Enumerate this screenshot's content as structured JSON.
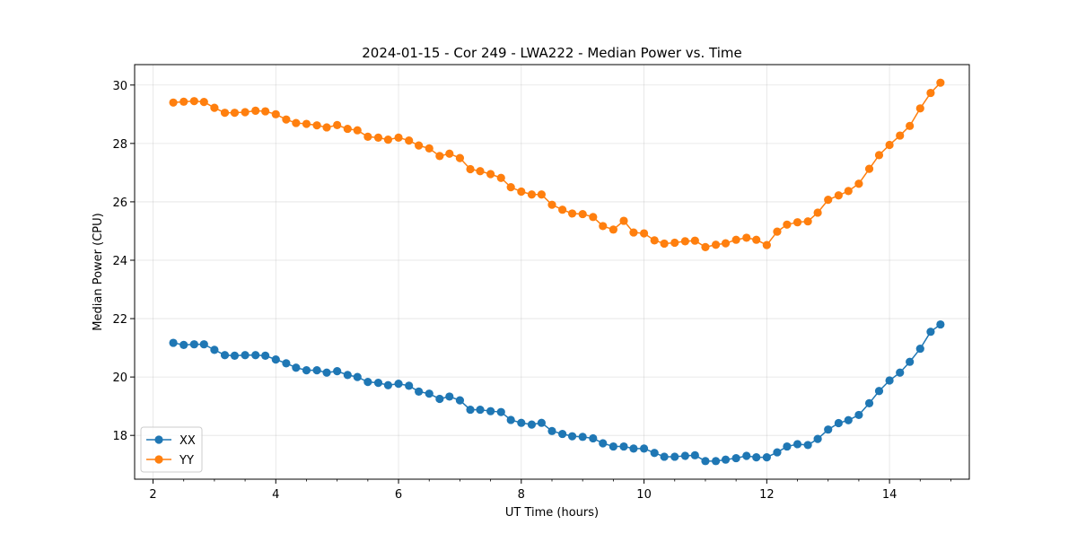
{
  "chart_data": {
    "type": "line",
    "title": "2024-01-15 - Cor 249 - LWA222 - Median Power vs. Time",
    "xlabel": "UT Time (hours)",
    "ylabel": "Median Power (CPU)",
    "xlim": [
      1.7,
      15.3
    ],
    "ylim": [
      16.5,
      30.7
    ],
    "xticks": [
      2,
      4,
      6,
      8,
      10,
      12,
      14
    ],
    "xtick_labels": [
      "2",
      "4",
      "6",
      "8",
      "10",
      "12",
      "14"
    ],
    "yticks": [
      18,
      20,
      22,
      24,
      26,
      28,
      30
    ],
    "ytick_labels": [
      "18",
      "20",
      "22",
      "24",
      "26",
      "28",
      "30"
    ],
    "grid": true,
    "legend_position": "lower-left",
    "x": [
      2.33,
      2.5,
      2.67,
      2.83,
      3.0,
      3.17,
      3.33,
      3.5,
      3.67,
      3.83,
      4.0,
      4.17,
      4.33,
      4.5,
      4.67,
      4.83,
      5.0,
      5.17,
      5.33,
      5.5,
      5.67,
      5.83,
      6.0,
      6.17,
      6.33,
      6.5,
      6.67,
      6.83,
      7.0,
      7.17,
      7.33,
      7.5,
      7.67,
      7.83,
      8.0,
      8.17,
      8.33,
      8.5,
      8.67,
      8.83,
      9.0,
      9.17,
      9.33,
      9.5,
      9.67,
      9.83,
      10.0,
      10.17,
      10.33,
      10.5,
      10.67,
      10.83,
      11.0,
      11.17,
      11.33,
      11.5,
      11.67,
      11.83,
      12.0,
      12.17,
      12.33,
      12.5,
      12.67,
      12.83,
      13.0,
      13.17,
      13.33,
      13.5,
      13.67,
      13.83,
      14.0,
      14.17,
      14.33,
      14.5,
      14.67,
      14.83
    ],
    "series": [
      {
        "name": "XX",
        "color": "#1f77b4",
        "values": [
          21.17,
          21.1,
          21.12,
          21.12,
          20.93,
          20.75,
          20.73,
          20.75,
          20.75,
          20.73,
          20.6,
          20.47,
          20.32,
          20.23,
          20.23,
          20.15,
          20.2,
          20.07,
          20.0,
          19.83,
          19.8,
          19.72,
          19.77,
          19.7,
          19.5,
          19.43,
          19.25,
          19.33,
          19.2,
          18.88,
          18.88,
          18.83,
          18.8,
          18.53,
          18.43,
          18.37,
          18.43,
          18.15,
          18.05,
          17.97,
          17.95,
          17.9,
          17.73,
          17.62,
          17.62,
          17.55,
          17.55,
          17.4,
          17.27,
          17.27,
          17.3,
          17.32,
          17.12,
          17.12,
          17.17,
          17.22,
          17.3,
          17.25,
          17.25,
          17.42,
          17.62,
          17.7,
          17.67,
          17.88,
          18.2,
          18.42,
          18.52,
          18.7,
          19.1,
          19.52,
          19.88,
          20.15,
          20.52,
          20.97,
          21.55,
          21.8
        ]
      },
      {
        "name": "YY",
        "color": "#ff7f0e",
        "values": [
          29.4,
          29.43,
          29.45,
          29.42,
          29.22,
          29.05,
          29.05,
          29.07,
          29.12,
          29.1,
          29.0,
          28.82,
          28.7,
          28.67,
          28.62,
          28.55,
          28.63,
          28.5,
          28.45,
          28.23,
          28.2,
          28.13,
          28.2,
          28.1,
          27.93,
          27.83,
          27.57,
          27.65,
          27.5,
          27.12,
          27.05,
          26.95,
          26.82,
          26.5,
          26.35,
          26.25,
          26.25,
          25.9,
          25.73,
          25.6,
          25.58,
          25.48,
          25.17,
          25.05,
          25.35,
          24.95,
          24.92,
          24.68,
          24.57,
          24.6,
          24.65,
          24.67,
          24.45,
          24.53,
          24.58,
          24.7,
          24.77,
          24.7,
          24.52,
          24.98,
          25.22,
          25.3,
          25.33,
          25.63,
          26.07,
          26.22,
          26.37,
          26.62,
          27.13,
          27.6,
          27.95,
          28.27,
          28.6,
          29.2,
          29.73,
          30.08
        ]
      }
    ]
  }
}
